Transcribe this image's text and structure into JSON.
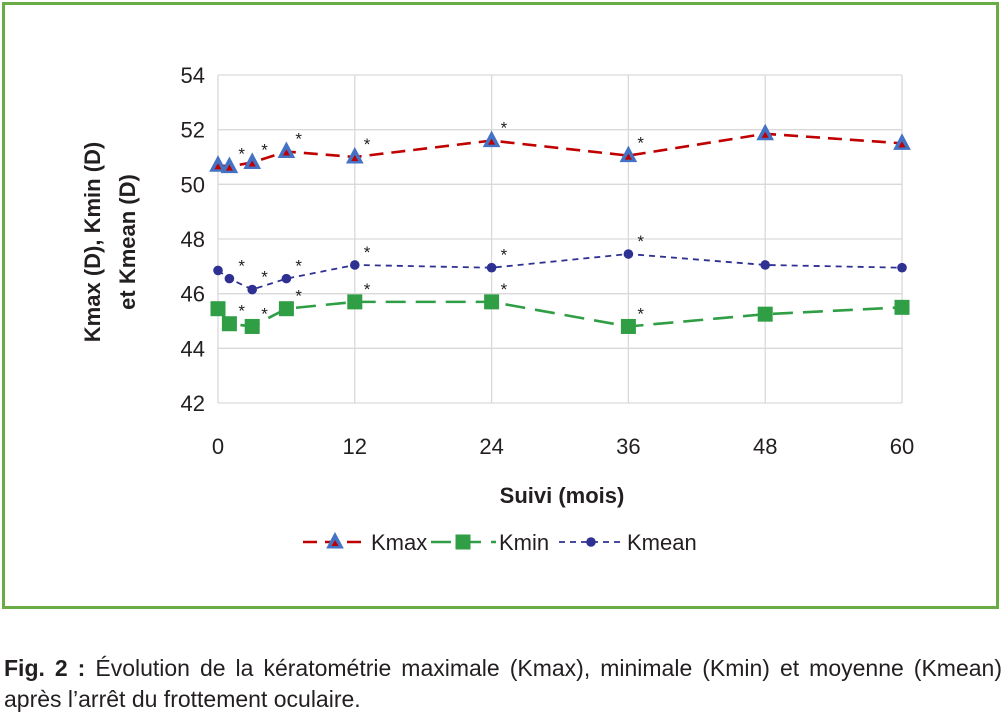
{
  "chart_data": {
    "type": "line",
    "xlabel": "Suivi (mois)",
    "ylabel_lines": [
      "Kmax (D), Kmin (D)",
      "et Kmean (D)"
    ],
    "xlim": [
      0,
      60
    ],
    "ylim": [
      42,
      54
    ],
    "x_ticks": [
      0,
      12,
      24,
      36,
      48,
      60
    ],
    "y_ticks": [
      42,
      44,
      46,
      48,
      50,
      52,
      54
    ],
    "grid": true,
    "legend_position": "bottom",
    "series": [
      {
        "name": "Kmax",
        "color": "#c00000",
        "marker": "triangle",
        "marker_color": "#4472c4",
        "dash": "dashed",
        "x": [
          0,
          1,
          3,
          6,
          12,
          24,
          36,
          48,
          60
        ],
        "y": [
          50.7,
          50.65,
          50.8,
          51.2,
          51.0,
          51.6,
          51.05,
          51.85,
          51.5
        ],
        "significant": [
          false,
          true,
          true,
          true,
          true,
          true,
          true,
          false,
          false
        ]
      },
      {
        "name": "Kmin",
        "color": "#2f9e44",
        "marker": "square",
        "marker_color": "#2f9e44",
        "dash": "long-dashed",
        "x": [
          0,
          1,
          3,
          6,
          12,
          24,
          36,
          48,
          60
        ],
        "y": [
          45.45,
          44.9,
          44.8,
          45.45,
          45.7,
          45.7,
          44.8,
          45.25,
          45.5
        ],
        "significant": [
          false,
          true,
          true,
          true,
          true,
          true,
          true,
          false,
          false
        ]
      },
      {
        "name": "Kmean",
        "color": "#2e3192",
        "marker": "circle",
        "marker_color": "#2e3192",
        "dash": "short-dashed",
        "x": [
          0,
          1,
          3,
          6,
          12,
          24,
          36,
          48,
          60
        ],
        "y": [
          46.85,
          46.55,
          46.15,
          46.55,
          47.05,
          46.95,
          47.45,
          47.05,
          46.95
        ],
        "significant": [
          false,
          true,
          true,
          true,
          true,
          true,
          true,
          false,
          false
        ]
      }
    ],
    "significance_marker": "*"
  },
  "caption": {
    "label": "Fig. 2 :",
    "text": " Évolution de la kératométrie maximale (Kmax), minimale (Kmin) et moyenne (Kmean) après l’arrêt du frottement oculaire."
  }
}
